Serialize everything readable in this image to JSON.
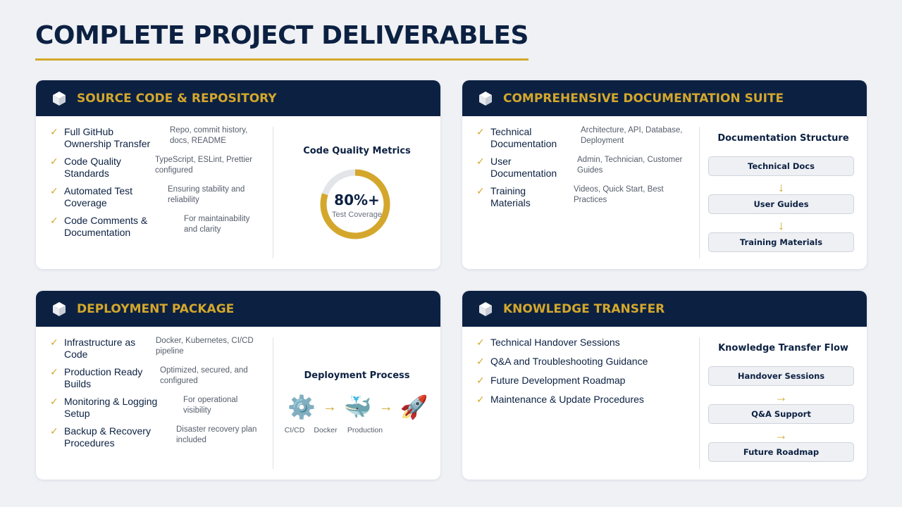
{
  "page": {
    "title": "COMPLETE PROJECT DELIVERABLES"
  },
  "colors": {
    "navy": "#0c2142",
    "gold": "#d4a72c",
    "background": "#eff1f5"
  },
  "cards": {
    "source": {
      "title": "SOURCE CODE & REPOSITORY",
      "icon": "cube-icon",
      "items": [
        {
          "label": "Full GitHub Ownership Transfer",
          "desc": "Repo, commit history, docs, README"
        },
        {
          "label": "Code Quality Standards",
          "desc": "TypeScript, ESLint, Prettier configured"
        },
        {
          "label": "Automated Test Coverage",
          "desc": "Ensuring stability and reliability"
        },
        {
          "label": "Code Comments & Documentation",
          "desc": "For maintainability and clarity"
        }
      ],
      "metric": {
        "title": "Code Quality Metrics",
        "value": "80%+",
        "label": "Test Coverage",
        "percent": 80
      }
    },
    "docs": {
      "title": "COMPREHENSIVE DOCUMENTATION SUITE",
      "icon": "cube-icon",
      "items": [
        {
          "label": "Technical Documentation",
          "desc": "Architecture, API, Database, Deployment"
        },
        {
          "label": "User Documentation",
          "desc": "Admin, Technician, Customer Guides"
        },
        {
          "label": "Training Materials",
          "desc": "Videos, Quick Start, Best Practices"
        }
      ],
      "structure": {
        "title": "Documentation Structure",
        "steps": [
          "Technical Docs",
          "User Guides",
          "Training Materials"
        ],
        "arrow": "↓"
      }
    },
    "deploy": {
      "title": "DEPLOYMENT PACKAGE",
      "icon": "cube-icon",
      "items": [
        {
          "label": "Infrastructure as Code",
          "desc": "Docker, Kubernetes, CI/CD pipeline"
        },
        {
          "label": "Production Ready Builds",
          "desc": "Optimized, secured, and configured"
        },
        {
          "label": "Monitoring & Logging Setup",
          "desc": "For operational visibility"
        },
        {
          "label": "Backup & Recovery Procedures",
          "desc": "Disaster recovery plan included"
        }
      ],
      "process": {
        "title": "Deployment Process",
        "steps": [
          {
            "icon": "⚙️",
            "label": "CI/CD"
          },
          {
            "icon": "🐳",
            "label": "Docker"
          },
          {
            "icon": "🚀",
            "label": "Production"
          }
        ],
        "arrow": "→"
      }
    },
    "knowledge": {
      "title": "KNOWLEDGE TRANSFER",
      "icon": "cube-icon",
      "items": [
        {
          "label": "Technical Handover Sessions"
        },
        {
          "label": "Q&A and Troubleshooting Guidance"
        },
        {
          "label": "Future Development Roadmap"
        },
        {
          "label": "Maintenance & Update Procedures"
        }
      ],
      "flow": {
        "title": "Knowledge Transfer Flow",
        "steps": [
          "Handover Sessions",
          "Q&A Support",
          "Future Roadmap"
        ],
        "arrow": "→"
      }
    }
  }
}
